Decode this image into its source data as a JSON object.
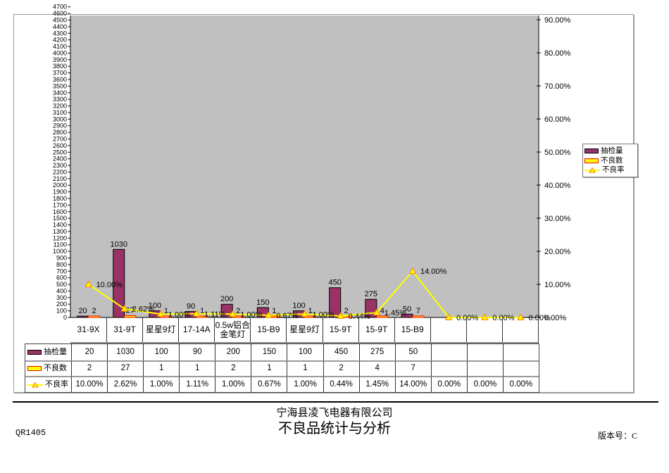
{
  "page": {
    "company": "宁海县凌飞电器有限公司",
    "title": "不良品统计与分析",
    "doc_code": "QR1405",
    "version_label": "版本号：C"
  },
  "chart_data": {
    "type": "bar",
    "subtype": "bar-line-combo-with-data-table",
    "categories": [
      "31-9X",
      "31-9T",
      "星星9灯",
      "17-14A",
      "0.5w铝合金笔灯",
      "15-B9",
      "星星9灯",
      "15-9T",
      "15-9T",
      "15-B9",
      "",
      "",
      ""
    ],
    "series": [
      {
        "name": "抽检量",
        "type": "bar",
        "axis": "left",
        "color": "#993366",
        "border_color": "#000000",
        "values": [
          20,
          1030,
          100,
          90,
          200,
          150,
          100,
          450,
          275,
          50,
          null,
          null,
          null
        ],
        "labels": [
          "20",
          "1030",
          "100",
          "90",
          "200",
          "150",
          "100",
          "450",
          "275",
          "50",
          "",
          "",
          ""
        ]
      },
      {
        "name": "不良数",
        "type": "bar",
        "axis": "left",
        "color": "#FFFF00",
        "border_color": "#FF0000",
        "values": [
          2,
          27,
          1,
          1,
          2,
          1,
          1,
          2,
          4,
          7,
          null,
          null,
          null
        ],
        "labels": [
          "2",
          "27",
          "1",
          "1",
          "2",
          "1",
          "1",
          "2",
          "4",
          "7",
          "",
          "",
          ""
        ]
      },
      {
        "name": "不良率",
        "type": "line",
        "axis": "right",
        "color": "#FFFF00",
        "marker": "triangle",
        "marker_fill": "#FFFF00",
        "marker_stroke": "#FF8000",
        "values_pct": [
          10.0,
          2.62,
          1.0,
          1.11,
          1.0,
          0.67,
          1.0,
          0.44,
          1.45,
          14.0,
          0.0,
          0.0,
          0.0
        ],
        "labels": [
          "10.00%",
          "2.62%",
          "1.00%",
          "1.11%",
          "1.00%",
          "0.67%",
          "1.00%",
          "0.44%",
          "1.45%",
          "14.00%",
          "0.00%",
          "0.00%",
          "0.00%"
        ]
      }
    ],
    "left_axis": {
      "min": 0,
      "max": 4700,
      "step": 100
    },
    "right_axis": {
      "min": 0,
      "max": 90,
      "step": 10,
      "suffix": "%",
      "decimals": 2
    },
    "plot_bg": "#C0C0C0",
    "grid": false,
    "legend_position": "right"
  }
}
